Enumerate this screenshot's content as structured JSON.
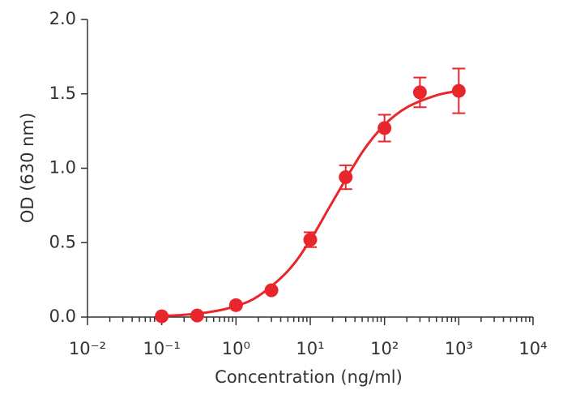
{
  "chart_data": {
    "type": "scatter",
    "x_label": "Concentration (ng/ml)",
    "y_label": "OD (630 nm)",
    "log_x": true,
    "grid": false,
    "xlim": [
      0.01,
      10000
    ],
    "xticks": [
      {
        "value": 0.01,
        "label": "10⁻²"
      },
      {
        "value": 0.1,
        "label": "10⁻¹"
      },
      {
        "value": 1,
        "label": "10⁰"
      },
      {
        "value": 10,
        "label": "10¹"
      },
      {
        "value": 100,
        "label": "10²"
      },
      {
        "value": 1000,
        "label": "10³"
      },
      {
        "value": 10000,
        "label": "10⁴"
      }
    ],
    "ylim": [
      0,
      2
    ],
    "yticks": [
      {
        "value": 0,
        "label": "0.0"
      },
      0.5,
      {
        "value": 1,
        "label": "1.0"
      },
      1.5,
      {
        "value": 2,
        "label": "2.0"
      }
    ],
    "color": "#e8262b",
    "x": [
      0.1,
      0.3,
      1,
      3,
      10,
      30,
      100,
      300,
      1000
    ],
    "values": [
      0.005,
      0.01,
      0.08,
      0.18,
      0.52,
      0.94,
      1.27,
      1.51,
      1.52
    ],
    "errors": [
      0,
      0,
      0,
      0,
      0.05,
      0.08,
      0.09,
      0.1,
      0.15
    ],
    "fit_curve": {
      "x": [
        0.1,
        0.2,
        0.5,
        1,
        2,
        5,
        10,
        20,
        50,
        100,
        200,
        500,
        1000
      ],
      "values": [
        0.008,
        0.015,
        0.038,
        0.074,
        0.141,
        0.31,
        0.517,
        0.775,
        1.107,
        1.292,
        1.409,
        1.49,
        1.52
      ]
    }
  }
}
